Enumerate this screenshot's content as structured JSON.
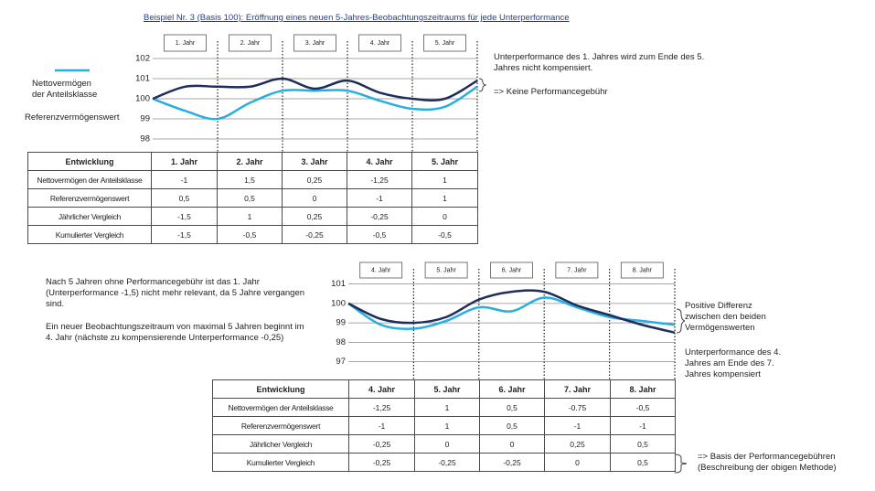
{
  "title": "Beispiel Nr. 3 (Basis 100): Eröffnung eines neuen 5-Jahres-Beobachtungszeitraums für jede Unterperformance",
  "chart_data": [
    {
      "type": "line",
      "periods": [
        "1. Jahr",
        "2. Jahr",
        "3. Jahr",
        "4. Jahr",
        "5. Jahr"
      ],
      "x": [
        0,
        0.5,
        1,
        1.5,
        2,
        2.5,
        3,
        3.5,
        4,
        4.5,
        5
      ],
      "ylim": [
        97.5,
        102.5
      ],
      "yticks": [
        98,
        99,
        100,
        101,
        102
      ],
      "grid": true,
      "series": [
        {
          "name": "Nettovermögen der Anteilsklasse",
          "color": "#29aee0",
          "values": [
            100,
            99.4,
            99,
            99.8,
            100.4,
            100.4,
            100.4,
            99.9,
            99.5,
            99.6,
            100.6
          ]
        },
        {
          "name": "Referenzvermögenswert",
          "color": "#1f2d5c",
          "values": [
            100,
            100.6,
            100.6,
            100.6,
            101,
            100.5,
            100.9,
            100.3,
            100,
            100,
            100.9
          ]
        }
      ]
    },
    {
      "type": "line",
      "periods": [
        "4. Jahr",
        "5. Jahr",
        "6. Jahr",
        "7. Jahr",
        "8. Jahr"
      ],
      "x": [
        0,
        0.5,
        1,
        1.5,
        2,
        2.5,
        3,
        3.5,
        4,
        4.5,
        5
      ],
      "ylim": [
        96.5,
        101.5
      ],
      "yticks": [
        97,
        98,
        99,
        100,
        101
      ],
      "grid": true,
      "series": [
        {
          "color": "#29aee0",
          "values": [
            100,
            98.9,
            98.7,
            99.1,
            99.8,
            99.6,
            100.3,
            99.8,
            99.3,
            99.1,
            98.9
          ]
        },
        {
          "color": "#1f2d5c",
          "values": [
            100,
            99.2,
            99,
            99.3,
            100.2,
            100.6,
            100.6,
            99.9,
            99.4,
            98.9,
            98.5
          ]
        }
      ]
    }
  ],
  "tables": [
    {
      "header": [
        "Entwicklung",
        "1. Jahr",
        "2. Jahr",
        "3. Jahr",
        "4. Jahr",
        "5. Jahr"
      ],
      "rows": [
        [
          "Nettovermögen der Anteilsklasse",
          "-1",
          "1,5",
          "0,25",
          "-1,25",
          "1"
        ],
        [
          "Referenzvermögenswert",
          "0,5",
          "0,5",
          "0",
          "-1",
          "1"
        ],
        [
          "Jährlicher Vergleich",
          "-1,5",
          "1",
          "0,25",
          "-0,25",
          "0"
        ],
        [
          "Kumulierter Vergleich",
          "-1,5",
          "-0,5",
          "-0,25",
          "-0,5",
          "-0,5"
        ]
      ]
    },
    {
      "header": [
        "Entwicklung",
        "4. Jahr",
        "5. Jahr",
        "6. Jahr",
        "7. Jahr",
        "8. Jahr"
      ],
      "rows": [
        [
          "Nettovermögen der Anteilsklasse",
          "-1,25",
          "1",
          "0,5",
          "-0.75",
          "-0,5"
        ],
        [
          "Referenzvermögenswert",
          "-1",
          "1",
          "0,5",
          "-1",
          "-1"
        ],
        [
          "Jährlicher Vergleich",
          "-0,25",
          "0",
          "0",
          "0,25",
          "0,5"
        ],
        [
          "Kumulierter Vergleich",
          "-0,25",
          "-0,25",
          "-0,25",
          "0",
          "0,5"
        ]
      ]
    }
  ],
  "notes": {
    "chart1_result": "Unterperformance des 1. Jahres wird zum Ende des 5. Jahres nicht kompensiert.",
    "chart1_fee": "=> Keine Performancegebühr",
    "explanation_1": "Nach 5 Jahren ohne Performancegebühr ist das 1. Jahr (Unterperformance -1,5) nicht mehr relevant, da 5 Jahre vergangen sind.",
    "explanation_2": "Ein neuer Beobachtungszeitraum von maximal 5 Jahren beginnt im 4. Jahr (nächste zu kompensierende Unterperformance -0,25)",
    "chart2_difference": "Positive Differenz zwischen den beiden Vermögenswerten",
    "chart2_result": "Unterperformance des 4. Jahres am Ende des 7. Jahres kompensiert",
    "table2_fee": "=> Basis der Performancegebühren (Beschreibung der obigen Methode)"
  }
}
